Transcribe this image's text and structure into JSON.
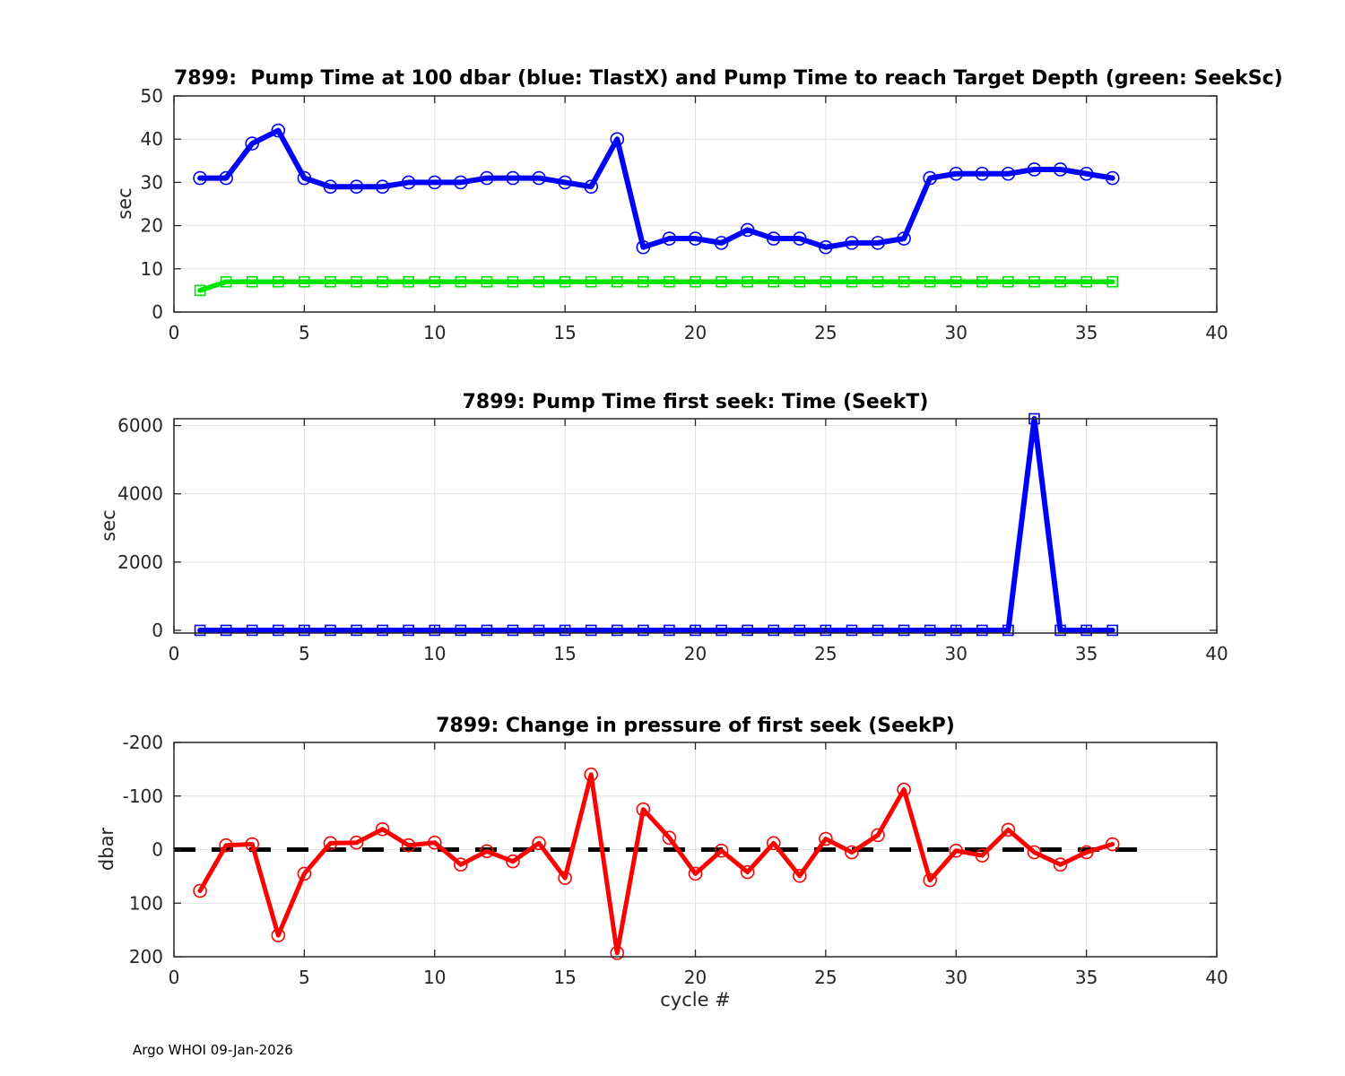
{
  "page": {
    "xlabel": "cycle #",
    "footer": "Argo WHOI 09-Jan-2026"
  },
  "chart_data": [
    {
      "type": "line",
      "title": "7899:  Pump Time at 100 dbar (blue: TlastX) and Pump Time to reach Target Depth (green: SeekSc)",
      "ylabel": "sec",
      "xlim": [
        0,
        40
      ],
      "ylim": [
        0,
        50
      ],
      "xticks": [
        0,
        5,
        10,
        15,
        20,
        25,
        30,
        35,
        40
      ],
      "yticks": [
        0,
        10,
        20,
        30,
        40,
        50
      ],
      "grid": true,
      "legend_position": "none",
      "x": [
        1,
        2,
        3,
        4,
        5,
        6,
        7,
        8,
        9,
        10,
        11,
        12,
        13,
        14,
        15,
        16,
        17,
        18,
        19,
        20,
        21,
        22,
        23,
        24,
        25,
        26,
        27,
        28,
        29,
        30,
        31,
        32,
        33,
        34,
        35,
        36
      ],
      "series": [
        {
          "name": "TlastX",
          "color": "#0000FF",
          "marker": "circle",
          "marker_size": 14,
          "line_width": 6,
          "values": [
            31,
            31,
            39,
            42,
            31,
            29,
            29,
            29,
            30,
            30,
            30,
            31,
            31,
            31,
            30,
            29,
            40,
            15,
            17,
            17,
            16,
            19,
            17,
            17,
            15,
            16,
            16,
            17,
            31,
            32,
            32,
            32,
            33,
            33,
            32,
            31
          ]
        },
        {
          "name": "SeekSc",
          "color": "#00E400",
          "marker": "square",
          "marker_size": 11,
          "line_width": 5.5,
          "values": [
            5,
            7,
            7,
            7,
            7,
            7,
            7,
            7,
            7,
            7,
            7,
            7,
            7,
            7,
            7,
            7,
            7,
            7,
            7,
            7,
            7,
            7,
            7,
            7,
            7,
            7,
            7,
            7,
            7,
            7,
            7,
            7,
            7,
            7,
            7,
            7
          ]
        }
      ]
    },
    {
      "type": "line",
      "title": "7899: Pump Time first seek: Time (SeekT)",
      "ylabel": "sec",
      "xlim": [
        0,
        40
      ],
      "ylim": [
        -80,
        6200
      ],
      "xticks": [
        0,
        5,
        10,
        15,
        20,
        25,
        30,
        35,
        40
      ],
      "yticks": [
        0,
        2000,
        4000,
        6000
      ],
      "grid": true,
      "legend_position": "none",
      "x": [
        1,
        2,
        3,
        4,
        5,
        6,
        7,
        8,
        9,
        10,
        11,
        12,
        13,
        14,
        15,
        16,
        17,
        18,
        19,
        20,
        21,
        22,
        23,
        24,
        25,
        26,
        27,
        28,
        29,
        30,
        31,
        32,
        33,
        34,
        35,
        36
      ],
      "series": [
        {
          "name": "SeekT",
          "color": "#0000FF",
          "marker": "square",
          "marker_size": 11,
          "line_width": 6,
          "values": [
            0,
            0,
            0,
            0,
            0,
            0,
            0,
            0,
            0,
            0,
            0,
            0,
            0,
            0,
            0,
            0,
            0,
            0,
            0,
            0,
            0,
            0,
            0,
            0,
            0,
            0,
            0,
            0,
            0,
            0,
            0,
            0,
            6200,
            0,
            0,
            0
          ]
        }
      ]
    },
    {
      "type": "line",
      "title": "7899: Change in pressure of first seek (SeekP)",
      "ylabel": "dbar",
      "xlim": [
        0,
        40
      ],
      "ylim": [
        -200,
        200
      ],
      "y_reversed": true,
      "xticks": [
        0,
        5,
        10,
        15,
        20,
        25,
        30,
        35,
        40
      ],
      "yticks": [
        -200,
        -100,
        0,
        100,
        200
      ],
      "grid": true,
      "legend_position": "none",
      "ref_line": {
        "y": 0,
        "x_start": 0,
        "x_end": 37,
        "color": "#000000",
        "style": "dashed",
        "line_width": 5
      },
      "x": [
        1,
        2,
        3,
        4,
        5,
        6,
        7,
        8,
        9,
        10,
        11,
        12,
        13,
        14,
        15,
        16,
        17,
        18,
        19,
        20,
        21,
        22,
        23,
        24,
        25,
        26,
        27,
        28,
        29,
        30,
        31,
        32,
        33,
        34,
        35,
        36
      ],
      "series": [
        {
          "name": "SeekP",
          "color": "#FF0000",
          "marker": "circle",
          "marker_size": 14,
          "line_width": 5,
          "values": [
            77,
            -8,
            -10,
            160,
            45,
            -12,
            -13,
            -38,
            -8,
            -13,
            28,
            3,
            22,
            -12,
            53,
            -140,
            193,
            -75,
            -22,
            45,
            2,
            42,
            -12,
            49,
            -20,
            5,
            -27,
            -112,
            57,
            2,
            11,
            -37,
            5,
            28,
            5,
            -10
          ]
        }
      ]
    }
  ]
}
